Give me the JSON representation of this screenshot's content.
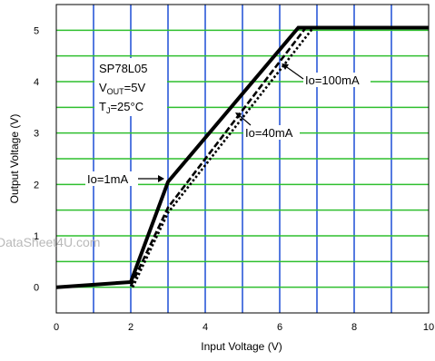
{
  "chart_data": {
    "type": "line",
    "xlabel": "Input Voltage (V)",
    "ylabel": "Output Voltage (V)",
    "xlim": [
      0,
      10
    ],
    "ylim": [
      -0.5,
      5.5
    ],
    "x_ticks": [
      "0",
      "2",
      "4",
      "6",
      "8",
      "10"
    ],
    "y_ticks": [
      "0",
      "1",
      "2",
      "3",
      "4",
      "5"
    ],
    "grid": true,
    "colors": {
      "grid_x": "#1d4fd6",
      "grid_y": "#2fbf2f",
      "axis": "#000000",
      "line": "#000000"
    },
    "series": [
      {
        "name": "Io=1mA",
        "style": "solid",
        "points": [
          [
            0,
            0
          ],
          [
            2,
            0.1
          ],
          [
            3,
            2.05
          ],
          [
            6.5,
            5.05
          ],
          [
            10,
            5.05
          ]
        ]
      },
      {
        "name": "Io=40mA",
        "style": "dashed",
        "points": [
          [
            2,
            0.02
          ],
          [
            3,
            1.55
          ],
          [
            6.7,
            5.05
          ],
          [
            10,
            5.05
          ]
        ]
      },
      {
        "name": "Io=100mA",
        "style": "dotted",
        "points": [
          [
            2.05,
            0
          ],
          [
            3,
            1.45
          ],
          [
            6.9,
            5.05
          ],
          [
            10,
            5.05
          ]
        ]
      }
    ],
    "annotations": {
      "device": "SP78L05",
      "vout_prefix": "V",
      "vout_sub": "OUT",
      "vout_value": "=5V",
      "tj_prefix": "T",
      "tj_sub": "J",
      "tj_value": "=25°C",
      "io1": "Io=1mA",
      "io40": "Io=40mA",
      "io100": "Io=100mA"
    },
    "watermark": "DataSheet4U.com"
  }
}
